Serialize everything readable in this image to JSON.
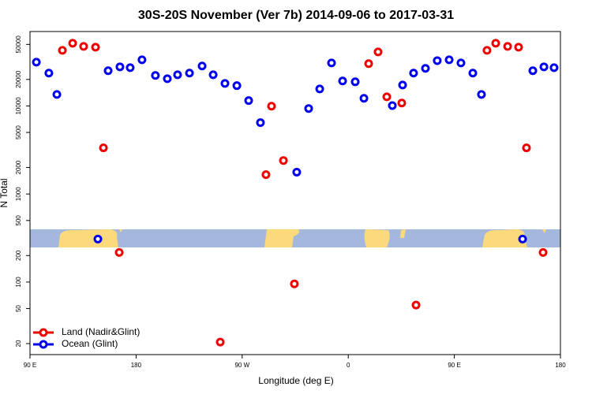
{
  "chart_data": {
    "type": "scatter",
    "title": "30S-20S November (Ver 7b)   2014-09-06 to 2017-03-31",
    "x_label": "Longitude (deg E)",
    "y_label": "N Total",
    "log_y": true,
    "legend": "bottom-left",
    "xlim": [
      90,
      540
    ],
    "xticks": [
      {
        "value": 90,
        "label": "90 E"
      },
      {
        "value": 180,
        "label": "180"
      },
      {
        "value": 270,
        "label": "90 W"
      },
      {
        "value": 360,
        "label": "0"
      },
      {
        "value": 450,
        "label": "90 E"
      },
      {
        "value": 540,
        "label": "180"
      }
    ],
    "ylim": [
      15,
      70000
    ],
    "yticks": [
      20,
      50,
      100,
      200,
      500,
      1000,
      2000,
      5000,
      10000,
      20000,
      50000
    ],
    "series": [
      {
        "name": "Land (Nadir&Glint)",
        "color": "#ee0000",
        "x": [
          117.5,
          126.2,
          135.5,
          145.6,
          152.3,
          165.7,
          251.4,
          290.2,
          294.9,
          305,
          314.3,
          377.3,
          385.3,
          392.7,
          405.4,
          417.5,
          477.7,
          485.1,
          495.2,
          504.5,
          511.2,
          525.3
        ],
        "values": [
          42800,
          51500,
          47400,
          46500,
          3340,
          217,
          20.8,
          1660,
          9930,
          2400,
          95.4,
          30200,
          41100,
          12700,
          10800,
          54.8,
          42800,
          51500,
          47400,
          46500,
          3340,
          217
        ]
      },
      {
        "name": "Ocean (Glint)",
        "color": "#0000ee",
        "x": [
          95.4,
          106,
          112.8,
          147.6,
          156.3,
          166.3,
          175,
          185,
          196.4,
          206.5,
          215.2,
          225.3,
          236,
          245.4,
          255.4,
          265.5,
          275.5,
          285.5,
          316.3,
          326.4,
          335.8,
          345.8,
          355.2,
          365.9,
          373.3,
          397.4,
          406.1,
          415.4,
          425.5,
          435.5,
          445.6,
          455.6,
          465.7,
          473,
          507.9,
          516.6,
          526,
          534.6
        ],
        "values": [
          31400,
          23600,
          13500,
          308,
          25100,
          27800,
          27200,
          33400,
          22200,
          20400,
          22600,
          23600,
          28400,
          22600,
          18000,
          17000,
          11500,
          6460,
          1770,
          9350,
          15600,
          30800,
          19200,
          18800,
          12200,
          10100,
          17300,
          23600,
          26700,
          32700,
          33400,
          30800,
          23600,
          13500,
          308,
          25100,
          27800,
          27200
        ]
      }
    ]
  }
}
